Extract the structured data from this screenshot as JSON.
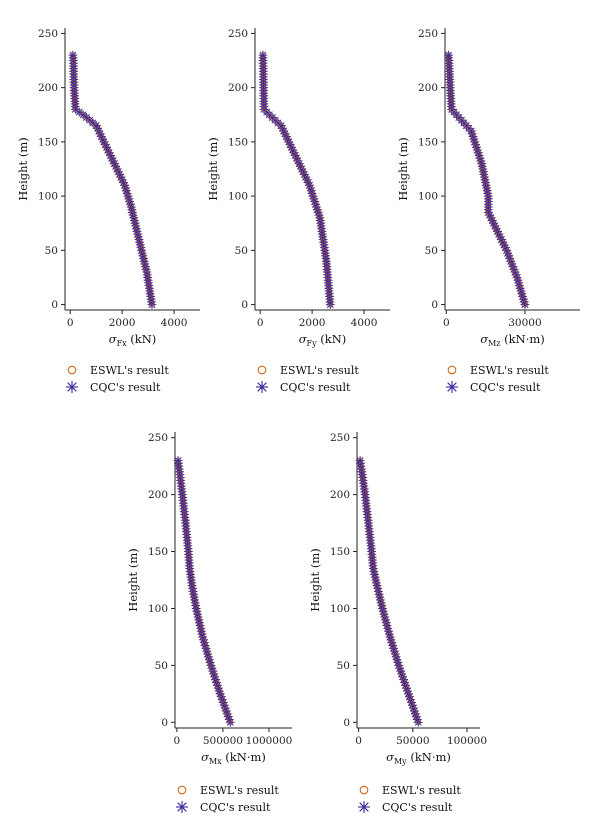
{
  "series_colors": {
    "esw": "#d2691e",
    "cqc": "#3a2a9a"
  },
  "legend": {
    "esw": "ESWL's result",
    "cqc": "CQC's result"
  },
  "chart_data": [
    {
      "type": "line",
      "id": "fx",
      "xlabel_sigma": "σ",
      "xlabel_sub": "Fx",
      "xlabel_unit": " (kN)",
      "ylabel": "Height (m)",
      "xlim": [
        -200,
        5000
      ],
      "ylim": [
        -5,
        255
      ],
      "xticks": [
        0,
        2000,
        4000
      ],
      "xtick_labels": [
        "0",
        "2000",
        "4000"
      ],
      "yticks": [
        0,
        50,
        100,
        150,
        200,
        250
      ],
      "ytick_labels": [
        "0",
        "50",
        "100",
        "150",
        "200",
        "250"
      ],
      "curve_height": [
        0,
        30,
        60,
        90,
        110,
        130,
        150,
        165,
        175,
        180,
        200,
        225,
        232
      ],
      "curve_value": [
        3150,
        2950,
        2650,
        2350,
        2100,
        1700,
        1300,
        1000,
        500,
        200,
        150,
        120,
        100
      ]
    },
    {
      "type": "line",
      "id": "fy",
      "xlabel_sigma": "σ",
      "xlabel_sub": "Fy",
      "xlabel_unit": " (kN)",
      "ylabel": "Height (m)",
      "xlim": [
        -200,
        5000
      ],
      "ylim": [
        -5,
        255
      ],
      "xticks": [
        0,
        2000,
        4000
      ],
      "xtick_labels": [
        "0",
        "2000",
        "4000"
      ],
      "yticks": [
        0,
        50,
        100,
        150,
        200,
        250
      ],
      "ytick_labels": [
        "0",
        "50",
        "100",
        "150",
        "200",
        "250"
      ],
      "curve_height": [
        0,
        40,
        80,
        110,
        130,
        150,
        165,
        175,
        180,
        200,
        225,
        232
      ],
      "curve_value": [
        2700,
        2550,
        2300,
        1900,
        1500,
        1100,
        800,
        350,
        150,
        130,
        110,
        100
      ]
    },
    {
      "type": "line",
      "id": "mz",
      "xlabel_sigma": "σ",
      "xlabel_sub": "Mz",
      "xlabel_unit": " (kN·m)",
      "ylabel": "Height (m)",
      "xlim": [
        -500,
        51000
      ],
      "ylim": [
        -5,
        255
      ],
      "xticks": [
        0,
        30000
      ],
      "xtick_labels": [
        "0",
        "30000"
      ],
      "yticks": [
        0,
        50,
        100,
        150,
        200,
        250
      ],
      "ytick_labels": [
        "0",
        "50",
        "100",
        "150",
        "200",
        "250"
      ],
      "curve_height": [
        0,
        25,
        50,
        75,
        85,
        100,
        130,
        160,
        172,
        180,
        200,
        225,
        232
      ],
      "curve_value": [
        30000,
        27000,
        23000,
        18000,
        16000,
        16000,
        13500,
        9500,
        5000,
        2000,
        1500,
        1000,
        800
      ]
    },
    {
      "type": "line",
      "id": "mx",
      "xlabel_sigma": "σ",
      "xlabel_sub": "Mx",
      "xlabel_unit": " (kN·m)",
      "ylabel": "Height (m)",
      "xlim": [
        -20000,
        1250000
      ],
      "ylim": [
        -5,
        255
      ],
      "xticks": [
        0,
        500000,
        1000000
      ],
      "xtick_labels": [
        "0",
        "500000",
        "1000000"
      ],
      "yticks": [
        0,
        50,
        100,
        150,
        200,
        250
      ],
      "ytick_labels": [
        "0",
        "50",
        "100",
        "150",
        "200",
        "250"
      ],
      "curve_height": [
        0,
        25,
        50,
        75,
        100,
        120,
        135,
        150,
        175,
        200,
        220,
        232
      ],
      "curve_value": [
        580000,
        470000,
        370000,
        280000,
        210000,
        165000,
        140000,
        125000,
        95000,
        60000,
        30000,
        10000
      ]
    },
    {
      "type": "line",
      "id": "my",
      "xlabel_sigma": "σ",
      "xlabel_sub": "My",
      "xlabel_unit": " (kN·m)",
      "ylabel": "Height (m)",
      "xlim": [
        -1500,
        112000
      ],
      "ylim": [
        -5,
        255
      ],
      "xticks": [
        0,
        50000,
        100000
      ],
      "xtick_labels": [
        "0",
        "50000",
        "100000"
      ],
      "yticks": [
        0,
        50,
        100,
        150,
        200,
        250
      ],
      "ytick_labels": [
        "0",
        "50",
        "100",
        "150",
        "200",
        "250"
      ],
      "curve_height": [
        0,
        25,
        50,
        75,
        100,
        120,
        135,
        150,
        175,
        200,
        220,
        232
      ],
      "curve_value": [
        55000,
        46000,
        37000,
        29000,
        22000,
        17000,
        13500,
        12000,
        9000,
        6000,
        3000,
        1000
      ]
    }
  ]
}
